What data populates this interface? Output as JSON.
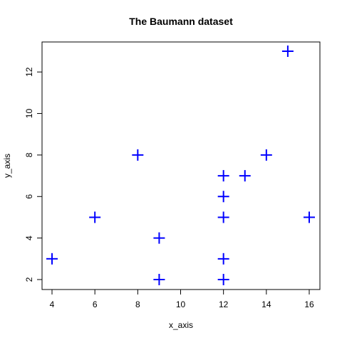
{
  "chart_data": {
    "type": "scatter",
    "title": "The Baumann dataset",
    "xlabel": "x_axis",
    "ylabel": "y_axis",
    "xlim": [
      4,
      16
    ],
    "ylim": [
      2,
      13
    ],
    "xticks": [
      4,
      6,
      8,
      10,
      12,
      14,
      16
    ],
    "yticks": [
      2,
      4,
      6,
      8,
      10,
      12
    ],
    "grid": false,
    "legend": false,
    "marker": "plus",
    "marker_color": "#0000FF",
    "points": [
      {
        "x": 4,
        "y": 3
      },
      {
        "x": 6,
        "y": 5
      },
      {
        "x": 8,
        "y": 8
      },
      {
        "x": 9,
        "y": 4
      },
      {
        "x": 9,
        "y": 2
      },
      {
        "x": 12,
        "y": 7
      },
      {
        "x": 12,
        "y": 6
      },
      {
        "x": 12,
        "y": 5
      },
      {
        "x": 12,
        "y": 3
      },
      {
        "x": 12,
        "y": 2
      },
      {
        "x": 13,
        "y": 7
      },
      {
        "x": 14,
        "y": 8
      },
      {
        "x": 15,
        "y": 13
      },
      {
        "x": 16,
        "y": 5
      }
    ]
  }
}
